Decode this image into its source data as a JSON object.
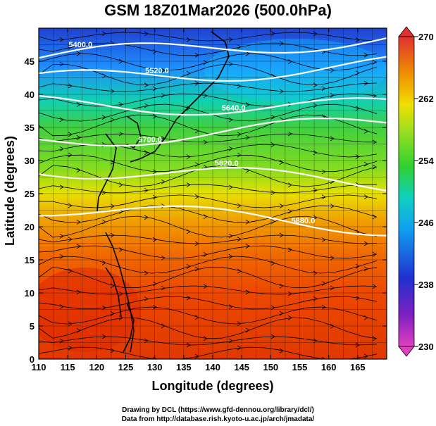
{
  "title": "GSM 18Z01Mar2026 (500.0hPa)",
  "x_axis": {
    "label": "Longitude (degrees)",
    "range": [
      110,
      170
    ],
    "ticks": [
      "110",
      "115",
      "120",
      "125",
      "130",
      "135",
      "140",
      "145",
      "150",
      "155",
      "160",
      "165"
    ]
  },
  "y_axis": {
    "label": "Latitude  (degrees)",
    "range": [
      0,
      50
    ],
    "ticks": [
      "0",
      "5",
      "10",
      "15",
      "20",
      "25",
      "30",
      "35",
      "40",
      "45"
    ]
  },
  "colorbar": {
    "range": [
      230,
      270
    ],
    "tick_labels": [
      "230",
      "238",
      "246",
      "254",
      "262",
      "270"
    ]
  },
  "contours": [
    {
      "label": "5400.0",
      "lat_start": 45.5,
      "lat_end": 48.5
    },
    {
      "label": "5520.0",
      "lat_start": 42.0,
      "lat_end": 44.5
    },
    {
      "label": "5640.0",
      "lat_start": 38.5,
      "lat_end": 38.0
    },
    {
      "label": "5700.0",
      "lat_start": 33.0,
      "lat_end": 35.5
    },
    {
      "label": "5820.0",
      "lat_start": 29.0,
      "lat_end": 26.5
    },
    {
      "label": "5880.0",
      "lat_start": 23.0,
      "lat_end": 20.0
    }
  ],
  "credits": {
    "line1": "Drawing by DCL (https://www.gfd-dennou.org/library/dcl/)",
    "line2": "Data from http://database.rish.kyoto-u.ac.jp/arch/jmadata/"
  },
  "colors": {
    "cold": "#1e3cd0",
    "cool": "#00b4ff",
    "mild": "#3cd23c",
    "warm": "#f0e000",
    "hot": "#e03000",
    "colorbar_low": "#e040c0",
    "colorbar_high": "#e03030"
  }
}
